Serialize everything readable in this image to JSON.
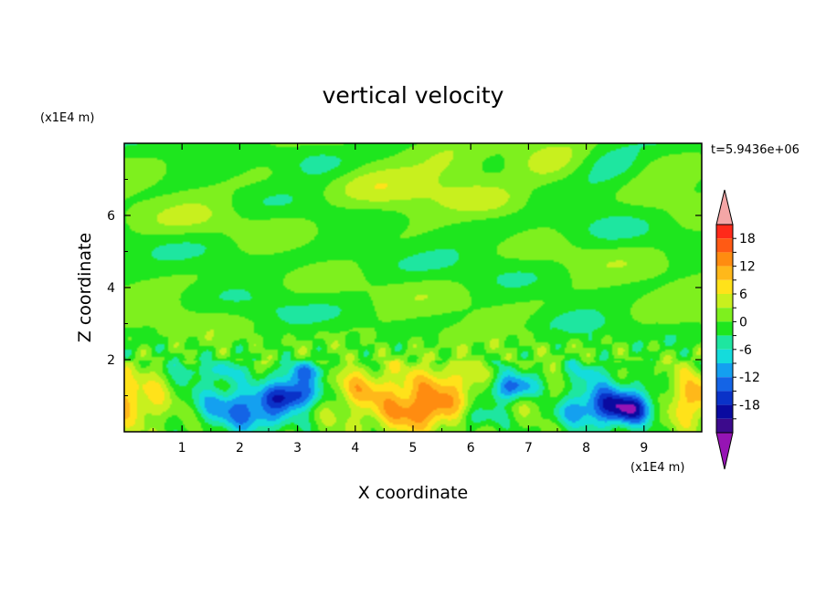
{
  "chart_data": {
    "type": "heatmap",
    "title": "vertical velocity",
    "xlabel": "X coordinate",
    "ylabel": "Z coordinate",
    "x_unit": "(x1E4 m)",
    "y_unit": "(x1E4 m)",
    "time_label": "t=5.9436e+06",
    "xlim": [
      0,
      10
    ],
    "ylim": [
      0,
      8
    ],
    "x_ticks": [
      "1",
      "2",
      "3",
      "4",
      "5",
      "6",
      "7",
      "8",
      "9"
    ],
    "y_ticks": [
      "2",
      "4",
      "6"
    ],
    "colorbar": {
      "labels": [
        "18",
        "12",
        "6",
        "0",
        "-6",
        "-12",
        "-18"
      ],
      "levels": [
        21,
        18,
        15,
        12,
        9,
        6,
        3,
        0,
        -3,
        -6,
        -9,
        -12,
        -15,
        -18,
        -21
      ],
      "colors": [
        "#ff2a1a",
        "#ff5a14",
        "#ff8c10",
        "#ffb81a",
        "#ffe21a",
        "#c8f01e",
        "#7ef01e",
        "#1ee61e",
        "#1ee6a0",
        "#14dcdc",
        "#14a0f0",
        "#1464e6",
        "#0a32c8",
        "#0a0aa0",
        "#3c0a8c"
      ],
      "over_color": "#f4a6a6",
      "under_color": "#9614b4",
      "extend": "both"
    },
    "features": [
      {
        "x": 0.1,
        "z": 0.9,
        "w": 0.6,
        "v": 10
      },
      {
        "x": 9.85,
        "z": 0.9,
        "w": 0.55,
        "v": 11
      },
      {
        "x": 1.0,
        "z": 1.0,
        "w": 0.55,
        "v": -3
      },
      {
        "x": 1.95,
        "z": 0.7,
        "w": 0.45,
        "v": -11
      },
      {
        "x": 2.4,
        "z": 0.35,
        "w": 0.35,
        "v": -7
      },
      {
        "x": 2.9,
        "z": 1.0,
        "w": 0.32,
        "v": -17
      },
      {
        "x": 2.95,
        "z": 1.55,
        "w": 0.28,
        "v": -8
      },
      {
        "x": 3.4,
        "z": 1.1,
        "w": 0.3,
        "v": -3
      },
      {
        "x": 3.9,
        "z": 1.2,
        "w": 0.35,
        "v": 5
      },
      {
        "x": 4.75,
        "z": 0.9,
        "w": 0.75,
        "v": 8
      },
      {
        "x": 5.2,
        "z": 0.55,
        "w": 0.4,
        "v": 9
      },
      {
        "x": 5.75,
        "z": 1.3,
        "w": 0.45,
        "v": 6
      },
      {
        "x": 6.7,
        "z": 1.2,
        "w": 0.32,
        "v": -15
      },
      {
        "x": 6.1,
        "z": 0.4,
        "w": 0.25,
        "v": -7
      },
      {
        "x": 7.2,
        "z": 0.9,
        "w": 0.32,
        "v": 5
      },
      {
        "x": 7.7,
        "z": 0.55,
        "w": 0.3,
        "v": -3
      },
      {
        "x": 8.35,
        "z": 0.75,
        "w": 0.5,
        "v": -14
      },
      {
        "x": 8.8,
        "z": 0.6,
        "w": 0.32,
        "v": -11
      },
      {
        "x": 9.1,
        "z": 1.0,
        "w": 0.35,
        "v": -4
      },
      {
        "x": 1.2,
        "z": 1.75,
        "w": 0.25,
        "v": -5
      },
      {
        "x": 1.75,
        "z": 1.65,
        "w": 0.22,
        "v": -6
      },
      {
        "x": 3.3,
        "z": 1.75,
        "w": 0.2,
        "v": -6
      },
      {
        "x": 8.1,
        "z": 1.7,
        "w": 0.25,
        "v": -5
      },
      {
        "x": 3.3,
        "z": 7.5,
        "w": 0.45,
        "v": -5
      },
      {
        "x": 4.5,
        "z": 6.6,
        "w": 0.6,
        "v": 3
      },
      {
        "x": 5.7,
        "z": 7.35,
        "w": 0.5,
        "v": 5
      },
      {
        "x": 7.3,
        "z": 7.25,
        "w": 0.45,
        "v": 4
      },
      {
        "x": 8.45,
        "z": 7.5,
        "w": 0.45,
        "v": -6
      },
      {
        "x": 1.3,
        "z": 6.0,
        "w": 0.5,
        "v": 2
      },
      {
        "x": 6.3,
        "z": 5.3,
        "w": 0.7,
        "v": -2
      },
      {
        "x": 1.6,
        "z": 5.2,
        "w": 0.6,
        "v": -2
      },
      {
        "x": 8.2,
        "z": 5.9,
        "w": 0.6,
        "v": -2
      },
      {
        "x": 4.2,
        "z": 4.5,
        "w": 0.7,
        "v": -1.5
      },
      {
        "x": 6.4,
        "z": 6.4,
        "w": 0.4,
        "v": 3
      },
      {
        "x": 9.2,
        "z": 6.6,
        "w": 0.4,
        "v": 2
      },
      {
        "x": 7.8,
        "z": 3.0,
        "w": 0.5,
        "v": -2
      },
      {
        "x": 2.5,
        "z": 3.2,
        "w": 0.5,
        "v": -2
      }
    ]
  }
}
